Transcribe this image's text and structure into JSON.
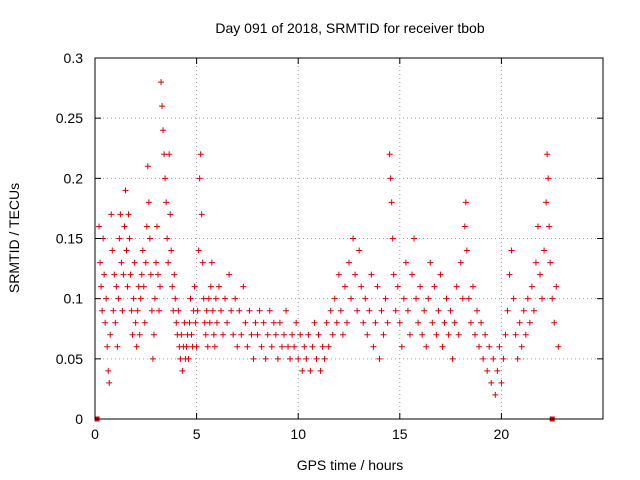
{
  "chart_data": {
    "type": "scatter",
    "title": "Day 091 of 2018, SRMTID for receiver tbob",
    "xlabel": "GPS time / hours",
    "ylabel": "SRMTID / TECUs",
    "xlim": [
      0,
      25
    ],
    "ylim": [
      0,
      0.3
    ],
    "xticks": [
      0,
      5,
      10,
      15,
      20
    ],
    "yticks": [
      0,
      0.05,
      0.1,
      0.15,
      0.2,
      0.25,
      0.3
    ],
    "xtick_labels": [
      "0",
      "5",
      "10",
      "15",
      "20"
    ],
    "ytick_labels": [
      "0",
      "0.05",
      "0.1",
      "0.15",
      "0.2",
      "0.25",
      "0.3"
    ],
    "grid": true,
    "marker": "+",
    "color": "#e00000",
    "zero_markers": [
      0.1,
      22.5
    ],
    "series": [
      {
        "name": "SRMTID",
        "points": [
          [
            0.2,
            0.16
          ],
          [
            0.25,
            0.13
          ],
          [
            0.3,
            0.11
          ],
          [
            0.35,
            0.09
          ],
          [
            0.4,
            0.15
          ],
          [
            0.45,
            0.12
          ],
          [
            0.5,
            0.08
          ],
          [
            0.55,
            0.1
          ],
          [
            0.6,
            0.06
          ],
          [
            0.65,
            0.04
          ],
          [
            0.7,
            0.03
          ],
          [
            0.75,
            0.07
          ],
          [
            0.8,
            0.17
          ],
          [
            0.85,
            0.14
          ],
          [
            0.9,
            0.09
          ],
          [
            0.95,
            0.12
          ],
          [
            1.0,
            0.08
          ],
          [
            1.05,
            0.11
          ],
          [
            1.1,
            0.06
          ],
          [
            1.15,
            0.1
          ],
          [
            1.2,
            0.15
          ],
          [
            1.25,
            0.17
          ],
          [
            1.3,
            0.13
          ],
          [
            1.35,
            0.09
          ],
          [
            1.4,
            0.12
          ],
          [
            1.45,
            0.16
          ],
          [
            1.5,
            0.19
          ],
          [
            1.55,
            0.14
          ],
          [
            1.6,
            0.11
          ],
          [
            1.65,
            0.17
          ],
          [
            1.7,
            0.15
          ],
          [
            1.75,
            0.12
          ],
          [
            1.8,
            0.09
          ],
          [
            1.85,
            0.07
          ],
          [
            1.9,
            0.1
          ],
          [
            1.95,
            0.13
          ],
          [
            2.0,
            0.08
          ],
          [
            2.05,
            0.06
          ],
          [
            2.1,
            0.09
          ],
          [
            2.15,
            0.11
          ],
          [
            2.2,
            0.07
          ],
          [
            2.25,
            0.1
          ],
          [
            2.3,
            0.12
          ],
          [
            2.35,
            0.14
          ],
          [
            2.4,
            0.11
          ],
          [
            2.45,
            0.08
          ],
          [
            2.5,
            0.13
          ],
          [
            2.55,
            0.16
          ],
          [
            2.6,
            0.21
          ],
          [
            2.65,
            0.18
          ],
          [
            2.7,
            0.15
          ],
          [
            2.75,
            0.12
          ],
          [
            2.8,
            0.09
          ],
          [
            2.85,
            0.05
          ],
          [
            2.9,
            0.07
          ],
          [
            2.95,
            0.1
          ],
          [
            3.0,
            0.13
          ],
          [
            3.05,
            0.16
          ],
          [
            3.1,
            0.12
          ],
          [
            3.15,
            0.09
          ],
          [
            3.2,
            0.11
          ],
          [
            3.25,
            0.28
          ],
          [
            3.3,
            0.26
          ],
          [
            3.35,
            0.24
          ],
          [
            3.4,
            0.22
          ],
          [
            3.45,
            0.2
          ],
          [
            3.5,
            0.18
          ],
          [
            3.55,
            0.15
          ],
          [
            3.6,
            0.13
          ],
          [
            3.65,
            0.22
          ],
          [
            3.7,
            0.17
          ],
          [
            3.75,
            0.14
          ],
          [
            3.8,
            0.11
          ],
          [
            3.85,
            0.09
          ],
          [
            3.9,
            0.12
          ],
          [
            3.95,
            0.1
          ],
          [
            4.0,
            0.08
          ],
          [
            4.05,
            0.07
          ],
          [
            4.1,
            0.09
          ],
          [
            4.15,
            0.06
          ],
          [
            4.2,
            0.05
          ],
          [
            4.25,
            0.07
          ],
          [
            4.3,
            0.04
          ],
          [
            4.35,
            0.06
          ],
          [
            4.4,
            0.08
          ],
          [
            4.45,
            0.05
          ],
          [
            4.5,
            0.06
          ],
          [
            4.55,
            0.07
          ],
          [
            4.6,
            0.05
          ],
          [
            4.65,
            0.08
          ],
          [
            4.7,
            0.1
          ],
          [
            4.75,
            0.07
          ],
          [
            4.8,
            0.06
          ],
          [
            4.85,
            0.09
          ],
          [
            4.9,
            0.11
          ],
          [
            4.95,
            0.08
          ],
          [
            5.0,
            0.06
          ],
          [
            5.05,
            0.09
          ],
          [
            5.1,
            0.14
          ],
          [
            5.15,
            0.2
          ],
          [
            5.2,
            0.22
          ],
          [
            5.25,
            0.17
          ],
          [
            5.3,
            0.13
          ],
          [
            5.35,
            0.1
          ],
          [
            5.4,
            0.08
          ],
          [
            5.45,
            0.07
          ],
          [
            5.5,
            0.09
          ],
          [
            5.55,
            0.06
          ],
          [
            5.6,
            0.1
          ],
          [
            5.65,
            0.08
          ],
          [
            5.7,
            0.11
          ],
          [
            5.75,
            0.13
          ],
          [
            5.8,
            0.09
          ],
          [
            5.85,
            0.07
          ],
          [
            5.9,
            0.06
          ],
          [
            5.95,
            0.1
          ],
          [
            6.0,
            0.08
          ],
          [
            6.1,
            0.11
          ],
          [
            6.2,
            0.09
          ],
          [
            6.3,
            0.07
          ],
          [
            6.4,
            0.1
          ],
          [
            6.5,
            0.08
          ],
          [
            6.6,
            0.12
          ],
          [
            6.7,
            0.09
          ],
          [
            6.8,
            0.07
          ],
          [
            6.9,
            0.1
          ],
          [
            7.0,
            0.06
          ],
          [
            7.1,
            0.09
          ],
          [
            7.2,
            0.07
          ],
          [
            7.3,
            0.11
          ],
          [
            7.4,
            0.08
          ],
          [
            7.5,
            0.06
          ],
          [
            7.6,
            0.09
          ],
          [
            7.7,
            0.07
          ],
          [
            7.8,
            0.05
          ],
          [
            7.9,
            0.08
          ],
          [
            8.0,
            0.07
          ],
          [
            8.1,
            0.09
          ],
          [
            8.2,
            0.06
          ],
          [
            8.3,
            0.08
          ],
          [
            8.4,
            0.05
          ],
          [
            8.5,
            0.07
          ],
          [
            8.6,
            0.09
          ],
          [
            8.7,
            0.06
          ],
          [
            8.8,
            0.08
          ],
          [
            8.9,
            0.07
          ],
          [
            9.0,
            0.05
          ],
          [
            9.1,
            0.08
          ],
          [
            9.2,
            0.06
          ],
          [
            9.3,
            0.07
          ],
          [
            9.4,
            0.09
          ],
          [
            9.5,
            0.06
          ],
          [
            9.6,
            0.05
          ],
          [
            9.7,
            0.07
          ],
          [
            9.8,
            0.06
          ],
          [
            9.9,
            0.08
          ],
          [
            10.0,
            0.05
          ],
          [
            10.1,
            0.07
          ],
          [
            10.2,
            0.04
          ],
          [
            10.3,
            0.06
          ],
          [
            10.4,
            0.05
          ],
          [
            10.5,
            0.07
          ],
          [
            10.6,
            0.04
          ],
          [
            10.7,
            0.06
          ],
          [
            10.8,
            0.08
          ],
          [
            10.9,
            0.05
          ],
          [
            11.0,
            0.07
          ],
          [
            11.1,
            0.04
          ],
          [
            11.2,
            0.06
          ],
          [
            11.3,
            0.05
          ],
          [
            11.4,
            0.08
          ],
          [
            11.5,
            0.06
          ],
          [
            11.6,
            0.09
          ],
          [
            11.7,
            0.07
          ],
          [
            11.8,
            0.1
          ],
          [
            11.9,
            0.08
          ],
          [
            12.0,
            0.12
          ],
          [
            12.1,
            0.09
          ],
          [
            12.2,
            0.07
          ],
          [
            12.3,
            0.11
          ],
          [
            12.4,
            0.08
          ],
          [
            12.5,
            0.13
          ],
          [
            12.6,
            0.1
          ],
          [
            12.7,
            0.15
          ],
          [
            12.8,
            0.12
          ],
          [
            12.9,
            0.09
          ],
          [
            13.0,
            0.14
          ],
          [
            13.1,
            0.11
          ],
          [
            13.2,
            0.08
          ],
          [
            13.3,
            0.1
          ],
          [
            13.4,
            0.07
          ],
          [
            13.5,
            0.09
          ],
          [
            13.6,
            0.12
          ],
          [
            13.7,
            0.06
          ],
          [
            13.8,
            0.08
          ],
          [
            13.9,
            0.11
          ],
          [
            14.0,
            0.05
          ],
          [
            14.1,
            0.09
          ],
          [
            14.2,
            0.07
          ],
          [
            14.3,
            0.1
          ],
          [
            14.4,
            0.08
          ],
          [
            14.5,
            0.22
          ],
          [
            14.55,
            0.2
          ],
          [
            14.6,
            0.18
          ],
          [
            14.65,
            0.15
          ],
          [
            14.7,
            0.12
          ],
          [
            14.8,
            0.09
          ],
          [
            14.9,
            0.11
          ],
          [
            15.0,
            0.08
          ],
          [
            15.1,
            0.06
          ],
          [
            15.2,
            0.1
          ],
          [
            15.3,
            0.13
          ],
          [
            15.4,
            0.09
          ],
          [
            15.5,
            0.07
          ],
          [
            15.6,
            0.12
          ],
          [
            15.7,
            0.15
          ],
          [
            15.8,
            0.1
          ],
          [
            15.9,
            0.08
          ],
          [
            16.0,
            0.11
          ],
          [
            16.1,
            0.07
          ],
          [
            16.2,
            0.09
          ],
          [
            16.3,
            0.06
          ],
          [
            16.4,
            0.1
          ],
          [
            16.5,
            0.13
          ],
          [
            16.6,
            0.08
          ],
          [
            16.7,
            0.11
          ],
          [
            16.8,
            0.07
          ],
          [
            16.9,
            0.09
          ],
          [
            17.0,
            0.12
          ],
          [
            17.1,
            0.06
          ],
          [
            17.2,
            0.08
          ],
          [
            17.3,
            0.1
          ],
          [
            17.4,
            0.07
          ],
          [
            17.5,
            0.09
          ],
          [
            17.6,
            0.05
          ],
          [
            17.7,
            0.08
          ],
          [
            17.8,
            0.11
          ],
          [
            17.9,
            0.07
          ],
          [
            18.0,
            0.13
          ],
          [
            18.1,
            0.1
          ],
          [
            18.2,
            0.16
          ],
          [
            18.25,
            0.18
          ],
          [
            18.3,
            0.14
          ],
          [
            18.4,
            0.1
          ],
          [
            18.5,
            0.08
          ],
          [
            18.6,
            0.11
          ],
          [
            18.7,
            0.07
          ],
          [
            18.8,
            0.09
          ],
          [
            18.9,
            0.06
          ],
          [
            19.0,
            0.08
          ],
          [
            19.1,
            0.05
          ],
          [
            19.2,
            0.07
          ],
          [
            19.3,
            0.04
          ],
          [
            19.4,
            0.06
          ],
          [
            19.5,
            0.03
          ],
          [
            19.6,
            0.05
          ],
          [
            19.7,
            0.02
          ],
          [
            19.8,
            0.04
          ],
          [
            19.9,
            0.06
          ],
          [
            20.0,
            0.03
          ],
          [
            20.1,
            0.05
          ],
          [
            20.2,
            0.07
          ],
          [
            20.3,
            0.09
          ],
          [
            20.4,
            0.12
          ],
          [
            20.5,
            0.14
          ],
          [
            20.6,
            0.1
          ],
          [
            20.7,
            0.07
          ],
          [
            20.8,
            0.05
          ],
          [
            20.9,
            0.08
          ],
          [
            21.0,
            0.06
          ],
          [
            21.1,
            0.09
          ],
          [
            21.2,
            0.07
          ],
          [
            21.3,
            0.1
          ],
          [
            21.4,
            0.08
          ],
          [
            21.5,
            0.11
          ],
          [
            21.6,
            0.09
          ],
          [
            21.7,
            0.13
          ],
          [
            21.8,
            0.16
          ],
          [
            21.9,
            0.12
          ],
          [
            22.0,
            0.1
          ],
          [
            22.1,
            0.14
          ],
          [
            22.2,
            0.18
          ],
          [
            22.25,
            0.22
          ],
          [
            22.3,
            0.2
          ],
          [
            22.35,
            0.16
          ],
          [
            22.4,
            0.13
          ],
          [
            22.5,
            0.1
          ],
          [
            22.6,
            0.08
          ],
          [
            22.7,
            0.11
          ],
          [
            22.8,
            0.06
          ]
        ]
      }
    ]
  }
}
